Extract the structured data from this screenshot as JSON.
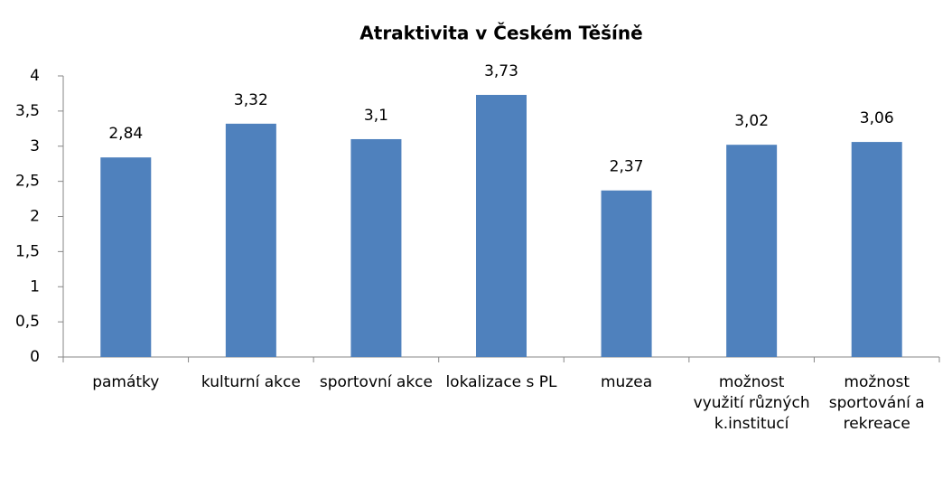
{
  "chart_data": {
    "type": "bar",
    "title": "Atraktivita v Českém Těšíně",
    "categories": [
      "památky",
      "kulturní akce",
      "sportovní akce",
      "lokalizace s PL",
      "muzea",
      "možnost využití různých k.institucí",
      "možnost sportování a rekreace"
    ],
    "values": [
      2.84,
      3.32,
      3.1,
      3.73,
      2.37,
      3.02,
      3.06
    ],
    "value_labels": [
      "2,84",
      "3,32",
      "3,1",
      "3,73",
      "2,37",
      "3,02",
      "3,06"
    ],
    "color": "#4f81bd",
    "ylim": [
      0,
      4
    ],
    "yticks": [
      0,
      {
        "value": 0.5,
        "label": "0,5"
      },
      1,
      {
        "value": 1.5,
        "label": "1,5"
      },
      2,
      {
        "value": 2.5,
        "label": "2,5"
      },
      3,
      {
        "value": 3.5,
        "label": "3,5"
      },
      4
    ],
    "grid": false
  }
}
